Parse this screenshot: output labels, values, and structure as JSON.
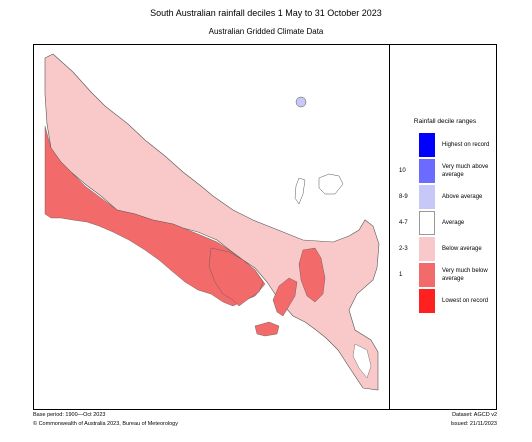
{
  "header": {
    "title": "South Australian rainfall deciles      1 May to 31 October 2023",
    "subtitle": "Australian Gridded Climate Data"
  },
  "legend": {
    "title": "Rainfall decile ranges",
    "items": [
      {
        "decile": "",
        "label": "Highest on record",
        "color": "#0000ff"
      },
      {
        "decile": "10",
        "label": "Very much above average",
        "color": "#6b6bff"
      },
      {
        "decile": "8-9",
        "label": "Above average",
        "color": "#c8c8f8"
      },
      {
        "decile": "4-7",
        "label": "Average",
        "color": "#ffffff"
      },
      {
        "decile": "2-3",
        "label": "Below average",
        "color": "#f9c8c8"
      },
      {
        "decile": "1",
        "label": "Very much below average",
        "color": "#f36a6a"
      },
      {
        "decile": "",
        "label": "Lowest on record",
        "color": "#ff2020"
      }
    ]
  },
  "footer": {
    "base_period": "Base period: 1900—Oct 2023",
    "copyright": "© Commonwealth of Australia 2023, Bureau of Meteorology",
    "dataset": "Dataset: AGCD v2",
    "issued": "Issued: 21/11/2023"
  },
  "map": {
    "land_color": "#f9c8c8",
    "dry_color": "#f36a6a",
    "wet_color": "#c8c8f8",
    "average_color": "#ffffff",
    "outline_color": "#555555"
  }
}
